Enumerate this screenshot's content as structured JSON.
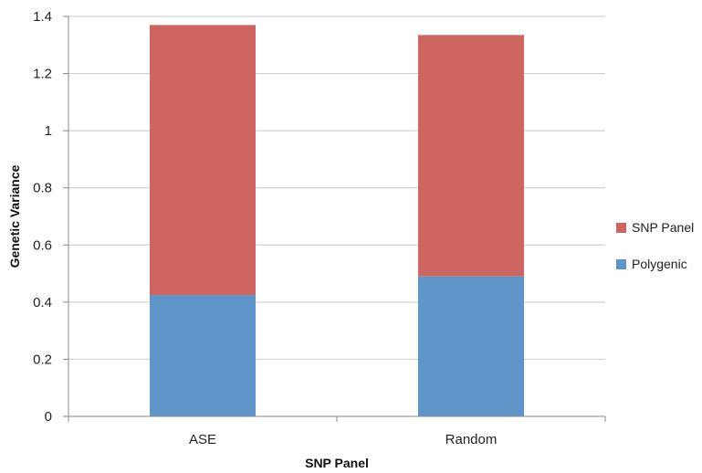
{
  "chart_data": {
    "type": "bar",
    "stacked": true,
    "categories": [
      "ASE",
      "Random"
    ],
    "series": [
      {
        "name": "Polygenic",
        "values": [
          0.425,
          0.49
        ],
        "color": "#5f95c9"
      },
      {
        "name": "SNP Panel",
        "values": [
          0.945,
          0.845
        ],
        "color": "#cd6660"
      }
    ],
    "title": "",
    "xlabel": "SNP Panel",
    "ylabel": "Genetic Variance",
    "ylim": [
      0,
      1.4
    ],
    "yticks": [
      "0",
      "0.2",
      "0.4",
      "0.6",
      "0.8",
      "1",
      "1.2",
      "1.4"
    ],
    "grid": true,
    "legend_position": "right"
  }
}
